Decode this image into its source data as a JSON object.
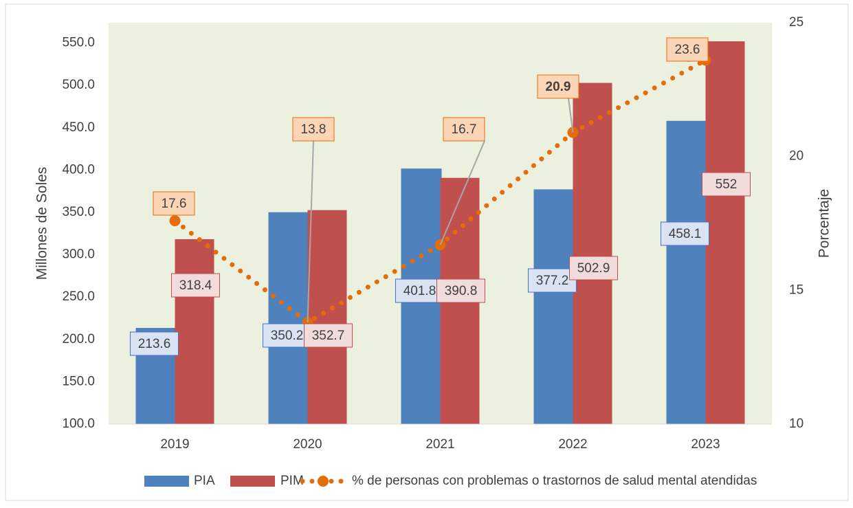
{
  "chart_data": {
    "type": "bar",
    "categories": [
      "2019",
      "2020",
      "2021",
      "2022",
      "2023"
    ],
    "series": [
      {
        "name": "PIA",
        "color": "#4f81bd",
        "values": [
          213.6,
          350.2,
          401.8,
          377.2,
          458.1
        ]
      },
      {
        "name": "PIM",
        "color": "#c0504d",
        "values": [
          318.4,
          352.7,
          390.8,
          502.9,
          552.0
        ]
      },
      {
        "name": "% de personas con problemas o trastornos de salud mental atendidas",
        "type": "line",
        "axis": "y2",
        "color": "#e46c0a",
        "values": [
          17.6,
          13.8,
          16.7,
          20.9,
          23.6
        ]
      }
    ],
    "ylabel": "Millones de Soles",
    "y2label": "Porcentaje",
    "ylim": [
      100,
      574
    ],
    "yticks": [
      {
        "value": 100,
        "label": "100.0"
      },
      {
        "value": 150,
        "label": "150.0"
      },
      {
        "value": 200,
        "label": "200.0"
      },
      {
        "value": 250,
        "label": "250.0"
      },
      {
        "value": 300,
        "label": "300.0"
      },
      {
        "value": 350,
        "label": "350.0"
      },
      {
        "value": 400,
        "label": "400.0"
      },
      {
        "value": 450,
        "label": "450.0"
      },
      {
        "value": 500,
        "label": "500.0"
      },
      {
        "value": 550,
        "label": "550.0"
      }
    ],
    "y2lim": [
      10,
      25
    ],
    "y2ticks": [
      10,
      15,
      20,
      25
    ],
    "legend": "bottom"
  }
}
